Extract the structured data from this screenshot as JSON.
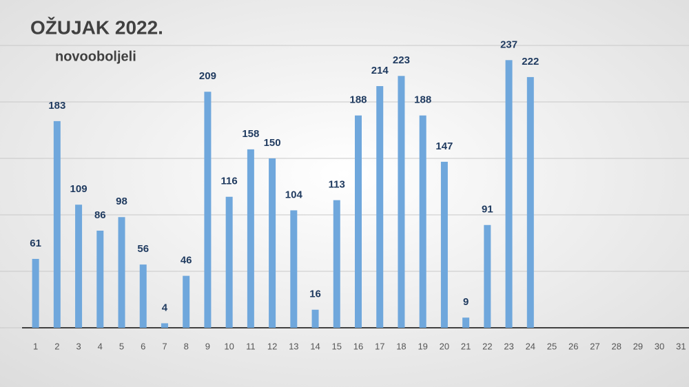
{
  "chart_data": {
    "type": "bar",
    "title": "OŽUJAK 2022.",
    "subtitle": "novooboljeli",
    "categories": [
      "1",
      "2",
      "3",
      "4",
      "5",
      "6",
      "7",
      "8",
      "9",
      "10",
      "11",
      "12",
      "13",
      "14",
      "15",
      "16",
      "17",
      "18",
      "19",
      "20",
      "21",
      "22",
      "23",
      "24",
      "25",
      "26",
      "27",
      "28",
      "29",
      "30",
      "31"
    ],
    "values": [
      61,
      183,
      109,
      86,
      98,
      56,
      4,
      46,
      209,
      116,
      158,
      150,
      104,
      16,
      113,
      188,
      214,
      223,
      188,
      147,
      9,
      91,
      237,
      222,
      null,
      null,
      null,
      null,
      null,
      null,
      null
    ],
    "color": "#6fa7dc",
    "ylim": [
      0,
      250
    ],
    "yticks": [
      0,
      50,
      100,
      150,
      200,
      250
    ],
    "grid": true
  }
}
